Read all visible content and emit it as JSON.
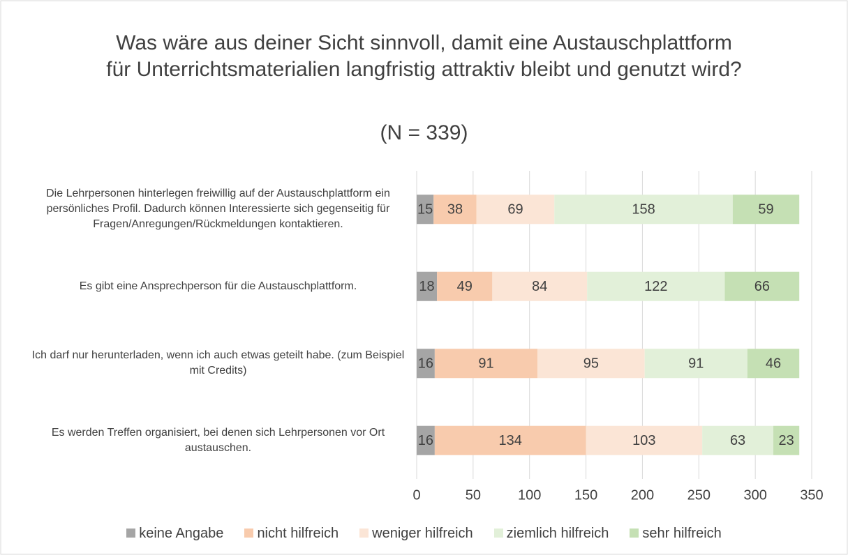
{
  "chart_data": {
    "type": "stacked_bar_horizontal",
    "title": "Was wäre aus deiner Sicht sinnvoll, damit eine Austauschplattform für Unterrichtsmaterialien langfristig attraktiv bleibt und genutzt wird?",
    "subtitle": "(N = 339)",
    "categories": [
      "Die Lehrpersonen hinterlegen freiwillig auf der Austauschplattform ein persönliches Profil. Dadurch können Interessierte sich gegenseitig für Fragen/Anregungen/Rückmeldungen kontaktieren.",
      "Es gibt eine Ansprechperson für die Austauschplattform.",
      "Ich darf nur herunterladen, wenn ich auch etwas geteilt habe. (zum Beispiel mit Credits)",
      "Es werden Treffen organisiert, bei denen sich Lehrpersonen vor Ort austauschen."
    ],
    "series": [
      {
        "name": "keine Angabe",
        "color": "#a5a5a5",
        "values": [
          15,
          18,
          16,
          16
        ]
      },
      {
        "name": "nicht hilfreich",
        "color": "#f8cbad",
        "values": [
          38,
          49,
          91,
          134
        ]
      },
      {
        "name": "weniger hilfreich",
        "color": "#fbe5d6",
        "values": [
          69,
          84,
          95,
          103
        ]
      },
      {
        "name": "ziemlich hilfreich",
        "color": "#e2f0d9",
        "values": [
          158,
          122,
          91,
          63
        ]
      },
      {
        "name": "sehr hilfreich",
        "color": "#c5e0b4",
        "values": [
          59,
          66,
          46,
          23
        ]
      }
    ],
    "xlim": [
      0,
      350
    ],
    "xticks": [
      0,
      50,
      100,
      150,
      200,
      250,
      300,
      350
    ],
    "grid": true
  }
}
